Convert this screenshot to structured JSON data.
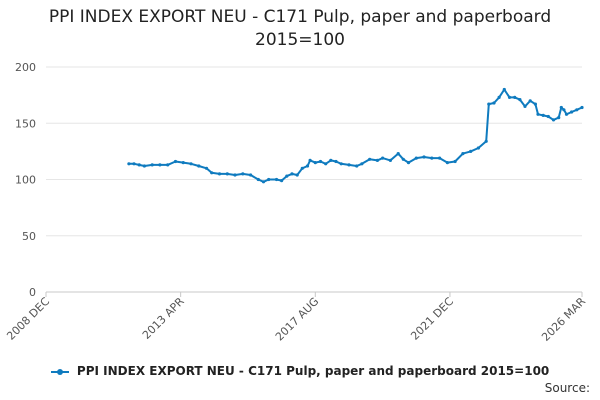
{
  "title_line1": "PPI INDEX EXPORT NEU - C171 Pulp, paper and paperboard",
  "title_line2": "2015=100",
  "source": "Source:",
  "colors": {
    "series": "#0f7bbf",
    "grid": "#e6e6e6",
    "axis": "#c8c8c8"
  },
  "chart_data": {
    "type": "line",
    "title": "PPI INDEX EXPORT NEU - C171 Pulp, paper and paperboard 2015=100",
    "xlabel": "",
    "ylabel": "",
    "x_ticks": [
      "2008 DEC",
      "2013 APR",
      "2017 AUG",
      "2021 DEC",
      "2026 MAR"
    ],
    "x_range": [
      "2008 DEC",
      "2026 MAR"
    ],
    "y_ticks": [
      0,
      50,
      100,
      150,
      200
    ],
    "ylim": [
      0,
      200
    ],
    "grid": "horizontal",
    "legend": "bottom",
    "series": [
      {
        "name": "PPI INDEX EXPORT NEU - C171 Pulp, paper and paperboard 2015=100",
        "points": [
          [
            "2011-08",
            114
          ],
          [
            "2011-10",
            114
          ],
          [
            "2011-12",
            113
          ],
          [
            "2012-02",
            112
          ],
          [
            "2012-05",
            113
          ],
          [
            "2012-08",
            113
          ],
          [
            "2012-11",
            113
          ],
          [
            "2013-02",
            116
          ],
          [
            "2013-05",
            115
          ],
          [
            "2013-08",
            114
          ],
          [
            "2013-11",
            112
          ],
          [
            "2014-02",
            110
          ],
          [
            "2014-04",
            106
          ],
          [
            "2014-07",
            105
          ],
          [
            "2014-10",
            105
          ],
          [
            "2015-01",
            104
          ],
          [
            "2015-04",
            105
          ],
          [
            "2015-07",
            104
          ],
          [
            "2015-10",
            100
          ],
          [
            "2015-12",
            98
          ],
          [
            "2016-02",
            100
          ],
          [
            "2016-05",
            100
          ],
          [
            "2016-07",
            99
          ],
          [
            "2016-09",
            103
          ],
          [
            "2016-11",
            105
          ],
          [
            "2017-01",
            104
          ],
          [
            "2017-03",
            110
          ],
          [
            "2017-05",
            112
          ],
          [
            "2017-06",
            117
          ],
          [
            "2017-08",
            115
          ],
          [
            "2017-10",
            116
          ],
          [
            "2017-12",
            114
          ],
          [
            "2018-02",
            117
          ],
          [
            "2018-04",
            116
          ],
          [
            "2018-06",
            114
          ],
          [
            "2018-09",
            113
          ],
          [
            "2018-12",
            112
          ],
          [
            "2019-02",
            114
          ],
          [
            "2019-05",
            118
          ],
          [
            "2019-08",
            117
          ],
          [
            "2019-10",
            119
          ],
          [
            "2020-01",
            117
          ],
          [
            "2020-04",
            123
          ],
          [
            "2020-06",
            118
          ],
          [
            "2020-08",
            115
          ],
          [
            "2020-11",
            119
          ],
          [
            "2021-02",
            120
          ],
          [
            "2021-05",
            119
          ],
          [
            "2021-08",
            119
          ],
          [
            "2021-11",
            115
          ],
          [
            "2022-02",
            116
          ],
          [
            "2022-05",
            123
          ],
          [
            "2022-08",
            125
          ],
          [
            "2022-11",
            128
          ],
          [
            "2023-02",
            134
          ],
          [
            "2023-03",
            167
          ],
          [
            "2023-05",
            168
          ],
          [
            "2023-07",
            173
          ],
          [
            "2023-09",
            180
          ],
          [
            "2023-11",
            173
          ],
          [
            "2024-01",
            173
          ],
          [
            "2024-03",
            171
          ],
          [
            "2024-05",
            165
          ],
          [
            "2024-07",
            170
          ],
          [
            "2024-09",
            167
          ],
          [
            "2024-10",
            158
          ],
          [
            "2024-12",
            157
          ],
          [
            "2025-02",
            156
          ],
          [
            "2025-04",
            153
          ],
          [
            "2025-06",
            155
          ],
          [
            "2025-07",
            164
          ],
          [
            "2025-08",
            162
          ],
          [
            "2025-09",
            158
          ],
          [
            "2025-11",
            160
          ],
          [
            "2026-01",
            162
          ],
          [
            "2026-03",
            164
          ]
        ]
      }
    ]
  }
}
